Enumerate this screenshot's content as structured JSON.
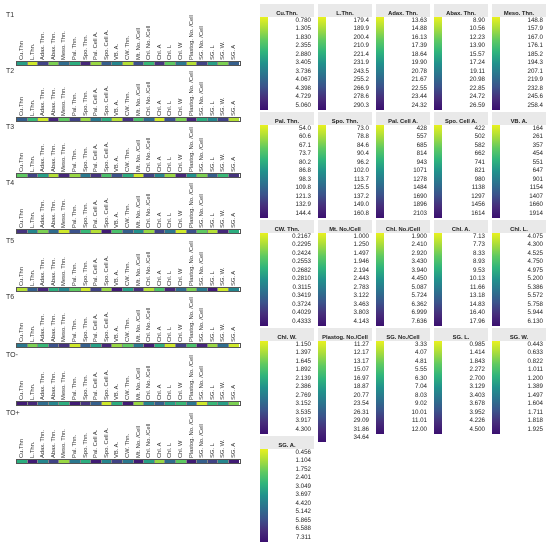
{
  "colors": {
    "low": "#1f2a6b",
    "mid": "#2f9a8c",
    "high": "#e9f11f",
    "gradient": [
      "#e9f11f",
      "#a8dc3c",
      "#5ec962",
      "#2fb47c",
      "#21918c",
      "#2c728e",
      "#3b528b",
      "#472d7b",
      "#3b0f70"
    ]
  },
  "columns": [
    "Cu.Thn",
    "L.Thn.",
    "Adax. Thn.",
    "Abax. Thn.",
    "Meso. Thn.",
    "Pal. Thn.",
    "Spo. Thn.",
    "Pal. Cell A.",
    "Spo. Cell A.",
    "VB. A.",
    "CW. Thn.",
    "Mt. No. /Cell",
    "Chl. No. /Cell",
    "Chl. A",
    "Chl. L",
    "Chl. W",
    "Plastog. No. /Cell",
    "SG. No. /Cell",
    "SG. L",
    "SG. W.",
    "SG. A"
  ],
  "panels": [
    {
      "label": "T1",
      "levels": [
        0.55,
        0.95,
        0.2,
        0.8,
        0.35,
        0.6,
        0.1,
        0.85,
        0.3,
        0.45,
        0.9,
        0.25,
        0.65,
        0.15,
        0.75,
        0.4,
        0.9,
        0.2,
        0.55,
        0.8,
        0.3
      ]
    },
    {
      "label": "T2",
      "levels": [
        0.3,
        0.65,
        0.95,
        0.1,
        0.75,
        0.2,
        0.85,
        0.4,
        0.6,
        0.9,
        0.15,
        0.7,
        0.35,
        0.95,
        0.25,
        0.8,
        0.1,
        0.6,
        0.45,
        0.2,
        0.9
      ]
    },
    {
      "label": "T3",
      "levels": [
        0.75,
        0.2,
        0.55,
        0.9,
        0.1,
        0.85,
        0.4,
        0.15,
        0.7,
        0.25,
        0.6,
        0.95,
        0.2,
        0.45,
        0.85,
        0.1,
        0.5,
        0.8,
        0.3,
        0.65,
        0.15
      ]
    },
    {
      "label": "T4",
      "levels": [
        0.15,
        0.45,
        0.8,
        0.35,
        0.95,
        0.25,
        0.65,
        0.9,
        0.05,
        0.7,
        0.3,
        0.5,
        0.85,
        0.2,
        0.4,
        0.95,
        0.25,
        0.75,
        0.9,
        0.1,
        0.6
      ]
    },
    {
      "label": "T5",
      "levels": [
        0.9,
        0.3,
        0.1,
        0.6,
        0.45,
        0.75,
        0.95,
        0.2,
        0.85,
        0.05,
        0.55,
        0.15,
        0.9,
        0.7,
        0.1,
        0.35,
        0.8,
        0.4,
        0.05,
        0.95,
        0.45
      ]
    },
    {
      "label": "T6",
      "levels": [
        0.4,
        0.8,
        0.65,
        0.25,
        0.15,
        0.95,
        0.3,
        0.55,
        0.1,
        0.85,
        0.75,
        0.4,
        0.05,
        0.6,
        0.95,
        0.2,
        0.7,
        0.1,
        0.85,
        0.35,
        0.95
      ]
    },
    {
      "label": "TO-",
      "levels": [
        0.05,
        0.1,
        0.35,
        0.45,
        0.6,
        0.05,
        0.15,
        0.3,
        0.95,
        0.6,
        0.05,
        0.85,
        0.45,
        0.3,
        0.55,
        0.65,
        0.4,
        0.95,
        0.65,
        0.55,
        0.8
      ]
    },
    {
      "label": "TO+",
      "levels": [
        0.6,
        0.05,
        0.45,
        0.2,
        0.85,
        0.4,
        0.6,
        0.05,
        0.45,
        0.2,
        0.4,
        0.05,
        0.55,
        0.85,
        0.35,
        0.75,
        0.05,
        0.3,
        0.2,
        0.45,
        0.05
      ]
    }
  ],
  "legends": [
    {
      "title": "Cu.Thn.",
      "values": [
        "0.780",
        "1.305",
        "1.830",
        "2.355",
        "2.880",
        "3.405",
        "3.736",
        "4.067",
        "4.398",
        "4.729",
        "5.060"
      ]
    },
    {
      "title": "L.Thn.",
      "values": [
        "179.4",
        "189.9",
        "200.4",
        "210.9",
        "221.4",
        "231.9",
        "243.5",
        "255.2",
        "266.9",
        "278.6",
        "290.3"
      ]
    },
    {
      "title": "Adax. Thn.",
      "values": [
        "13.63",
        "14.88",
        "16.13",
        "17.39",
        "18.64",
        "19.90",
        "20.78",
        "21.67",
        "22.55",
        "23.44",
        "24.32"
      ]
    },
    {
      "title": "Abax. Thn.",
      "values": [
        "8.90",
        "10.56",
        "12.23",
        "13.90",
        "15.57",
        "17.24",
        "19.11",
        "20.98",
        "22.85",
        "24.72",
        "26.59"
      ]
    },
    {
      "title": "Meso. Thn.",
      "values": [
        "148.8",
        "157.9",
        "167.0",
        "176.1",
        "185.2",
        "194.3",
        "207.1",
        "219.9",
        "232.8",
        "245.6",
        "258.4"
      ]
    },
    {
      "title": "Pal. Thn.",
      "values": [
        "54.0",
        "60.6",
        "67.1",
        "73.7",
        "80.2",
        "86.8",
        "98.3",
        "109.8",
        "121.3",
        "132.9",
        "144.4"
      ]
    },
    {
      "title": "Spo. Thn.",
      "values": [
        "73.0",
        "78.8",
        "84.6",
        "90.4",
        "96.2",
        "102.0",
        "113.7",
        "125.5",
        "137.2",
        "149.0",
        "160.8"
      ]
    },
    {
      "title": "Pal. Cell A.",
      "values": [
        "428",
        "557",
        "685",
        "814",
        "943",
        "1071",
        "1278",
        "1484",
        "1690",
        "1896",
        "2103"
      ]
    },
    {
      "title": "Spo. Cell A.",
      "values": [
        "422",
        "502",
        "582",
        "662",
        "741",
        "821",
        "980",
        "1138",
        "1297",
        "1456",
        "1614"
      ]
    },
    {
      "title": "VB. A.",
      "values": [
        "164",
        "261",
        "357",
        "454",
        "551",
        "647",
        "901",
        "1154",
        "1407",
        "1660",
        "1914"
      ]
    },
    {
      "title": "CW. Thn.",
      "values": [
        "0.2167",
        "0.2295",
        "0.2424",
        "0.2553",
        "0.2682",
        "0.2810",
        "0.3115",
        "0.3419",
        "0.3724",
        "0.4029",
        "0.4333"
      ]
    },
    {
      "title": "Mt. No./Cell",
      "values": [
        "1.000",
        "1.250",
        "1.497",
        "1.946",
        "2.194",
        "2.443",
        "2.783",
        "3.122",
        "3.463",
        "3.803",
        "4.143"
      ]
    },
    {
      "title": "Chl. No./Cell",
      "values": [
        "1.900",
        "2.410",
        "2.920",
        "3.430",
        "3.940",
        "4.450",
        "5.087",
        "5.724",
        "6.362",
        "6.999",
        "7.636"
      ]
    },
    {
      "title": "Chl. A.",
      "values": [
        "7.13",
        "7.73",
        "8.33",
        "8.93",
        "9.53",
        "10.13",
        "11.66",
        "13.18",
        "14.83",
        "16.40",
        "17.96"
      ]
    },
    {
      "title": "Chl. L.",
      "values": [
        "4.075",
        "4.300",
        "4.525",
        "4.750",
        "4.975",
        "5.200",
        "5.386",
        "5.572",
        "5.758",
        "5.944",
        "6.130"
      ]
    },
    {
      "title": "Chl. W.",
      "values": [
        "1.150",
        "1.397",
        "1.645",
        "1.892",
        "2.139",
        "2.386",
        "2.769",
        "3.152",
        "3.535",
        "3.917",
        "4.300"
      ]
    },
    {
      "title": "Plastog. No./Cell",
      "values": [
        "11.27",
        "12.17",
        "13.17",
        "15.07",
        "16.97",
        "18.87",
        "20.77",
        "23.54",
        "26.31",
        "29.09",
        "31.86",
        "34.64"
      ]
    },
    {
      "title": "SG. No./Cell",
      "values": [
        "3.33",
        "4.07",
        "4.81",
        "5.55",
        "6.30",
        "7.04",
        "8.03",
        "9.02",
        "10.01",
        "11.01",
        "12.00"
      ]
    },
    {
      "title": "SG. L.",
      "values": [
        "0.985",
        "1.414",
        "1.843",
        "2.272",
        "2.700",
        "3.129",
        "3.403",
        "3.678",
        "3.952",
        "4.226",
        "4.500"
      ]
    },
    {
      "title": "SG. W.",
      "values": [
        "0.443",
        "0.633",
        "0.822",
        "1.011",
        "1.200",
        "1.389",
        "1.497",
        "1.604",
        "1.711",
        "1.818",
        "1.925"
      ]
    },
    {
      "title": "SG. A.",
      "values": [
        "0.456",
        "1.104",
        "1.752",
        "2.401",
        "3.049",
        "3.697",
        "4.420",
        "5.142",
        "5.865",
        "6.588",
        "7.311"
      ]
    }
  ]
}
